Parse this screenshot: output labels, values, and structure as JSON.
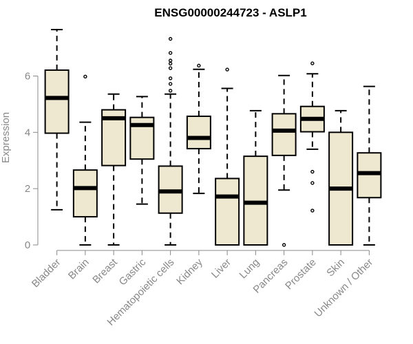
{
  "chart_data": {
    "type": "boxplot",
    "title": "ENSG00000244723 - ASLP1",
    "xlabel": "",
    "ylabel": "Expression",
    "ylim": [
      0,
      7.65
    ],
    "yticks": [
      0,
      2,
      4,
      6
    ],
    "grid": false,
    "legend": "none",
    "box_fill": "#efe8d0",
    "box_stroke": "#000000",
    "median_stroke": "#000000",
    "categories": [
      "Bladder",
      "Brain",
      "Breast",
      "Gastric",
      "Hematopoietic cells",
      "Kidney",
      "Liver",
      "Lung",
      "Pancreas",
      "Prostate",
      "Skin",
      "Unknown / Other"
    ],
    "boxes": [
      {
        "category": "Bladder",
        "whisker_low": 1.25,
        "q1": 3.97,
        "median": 5.22,
        "q3": 6.21,
        "whisker_high": 7.65,
        "outliers": []
      },
      {
        "category": "Brain",
        "whisker_low": 0.0,
        "q1": 1.0,
        "median": 2.02,
        "q3": 2.66,
        "whisker_high": 4.36,
        "outliers": [
          5.98
        ]
      },
      {
        "category": "Breast",
        "whisker_low": 0.0,
        "q1": 2.82,
        "median": 4.5,
        "q3": 4.8,
        "whisker_high": 5.36,
        "outliers": []
      },
      {
        "category": "Gastric",
        "whisker_low": 1.45,
        "q1": 3.05,
        "median": 4.26,
        "q3": 4.53,
        "whisker_high": 5.27,
        "outliers": []
      },
      {
        "category": "Hematopoietic cells",
        "whisker_low": 0.0,
        "q1": 1.13,
        "median": 1.9,
        "q3": 2.8,
        "whisker_high": 5.36,
        "outliers": [
          5.48,
          5.72,
          5.92,
          6.28,
          6.44,
          6.55,
          6.82,
          7.32
        ]
      },
      {
        "category": "Kidney",
        "whisker_low": 1.83,
        "q1": 3.42,
        "median": 3.8,
        "q3": 4.57,
        "whisker_high": 6.24,
        "outliers": [
          6.37
        ]
      },
      {
        "category": "Liver",
        "whisker_low": 0.0,
        "q1": 0.0,
        "median": 1.72,
        "q3": 2.36,
        "whisker_high": 5.56,
        "outliers": [
          6.23
        ]
      },
      {
        "category": "Lung",
        "whisker_low": 0.0,
        "q1": 0.0,
        "median": 1.5,
        "q3": 3.15,
        "whisker_high": 4.77,
        "outliers": []
      },
      {
        "category": "Pancreas",
        "whisker_low": 1.95,
        "q1": 3.18,
        "median": 4.06,
        "q3": 4.66,
        "whisker_high": 6.02,
        "outliers": [
          0.0
        ]
      },
      {
        "category": "Prostate",
        "whisker_low": 3.4,
        "q1": 4.02,
        "median": 4.48,
        "q3": 4.92,
        "whisker_high": 6.08,
        "outliers": [
          6.45,
          2.6,
          2.2,
          1.22
        ]
      },
      {
        "category": "Skin",
        "whisker_low": 0.0,
        "q1": 0.0,
        "median": 2.0,
        "q3": 4.0,
        "whisker_high": 4.77,
        "outliers": []
      },
      {
        "category": "Unknown / Other",
        "whisker_low": 0.0,
        "q1": 1.68,
        "median": 2.55,
        "q3": 3.27,
        "whisker_high": 5.63,
        "outliers": []
      }
    ]
  }
}
